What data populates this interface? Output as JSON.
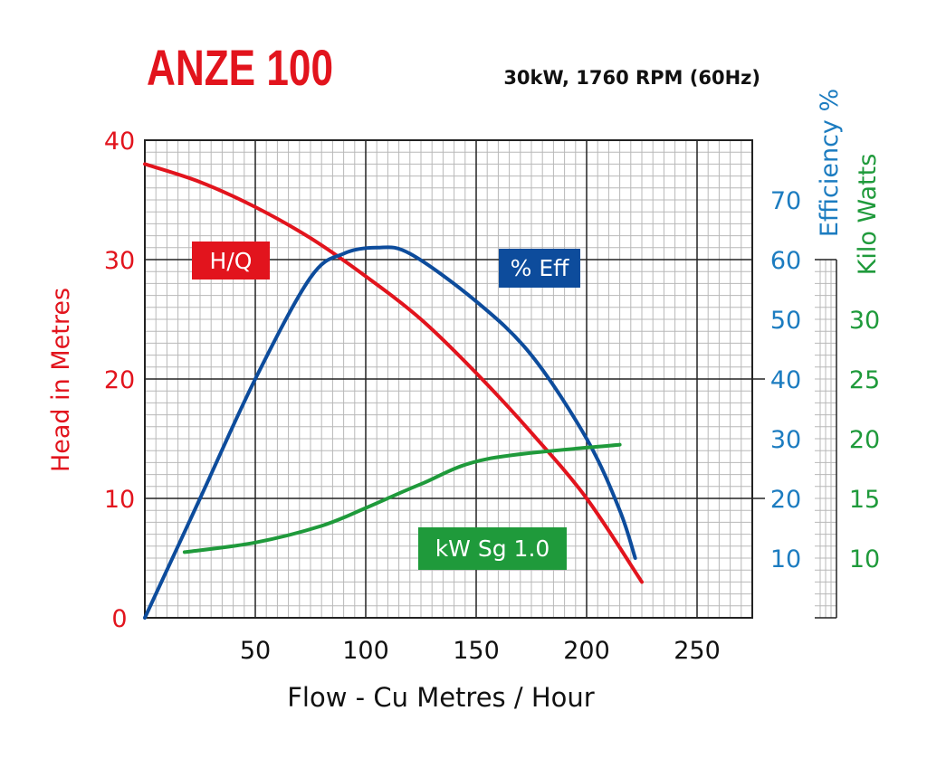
{
  "title": "ANZE 100",
  "subtitle": "30kW, 1760 RPM (60Hz)",
  "colors": {
    "head": "#e2141d",
    "efficiency": "#0d4c9c",
    "efficiency_axis": "#1c7cc0",
    "power": "#1f9a3b",
    "grid_major": "#222222",
    "grid_minor": "#b8b8b8",
    "text": "#111111"
  },
  "chart_data": {
    "type": "line",
    "title": "ANZE 100",
    "subtitle": "30kW, 1760 RPM (60Hz)",
    "xlabel": "Flow - Cu Metres / Hour",
    "xlim": [
      0,
      275
    ],
    "xticks": [
      50,
      100,
      150,
      200,
      250
    ],
    "grid": true,
    "axes": {
      "head": {
        "label": "Head in Metres",
        "range": [
          0,
          40
        ],
        "ticks": [
          0,
          10,
          20,
          30,
          40
        ]
      },
      "efficiency": {
        "label": "Efficiency %",
        "range": [
          0,
          80
        ],
        "ticks": [
          10,
          20,
          30,
          40,
          50,
          60,
          70
        ]
      },
      "power": {
        "label": "Kilo Watts",
        "range": [
          5,
          45
        ],
        "ticks": [
          10,
          15,
          20,
          25,
          30
        ]
      }
    },
    "series": [
      {
        "name": "H/Q",
        "axis": "head",
        "x": [
          0,
          25,
          50,
          75,
          100,
          125,
          150,
          175,
          200,
          225
        ],
        "y": [
          38,
          36.5,
          34.4,
          31.8,
          28.6,
          25,
          20.5,
          15.5,
          10,
          3
        ]
      },
      {
        "name": "% Eff",
        "axis": "efficiency",
        "x": [
          0,
          25,
          50,
          75,
          90,
          105,
          120,
          150,
          175,
          200,
          215,
          222
        ],
        "y": [
          0,
          20,
          40,
          57,
          61,
          62,
          61,
          53,
          44,
          30,
          18,
          10
        ]
      },
      {
        "name": "kW Sg 1.0",
        "axis": "power",
        "x": [
          18,
          50,
          80,
          100,
          125,
          155,
          215
        ],
        "y": [
          10.5,
          11.3,
          12.7,
          14.2,
          16.2,
          18.3,
          19.5
        ]
      }
    ]
  }
}
